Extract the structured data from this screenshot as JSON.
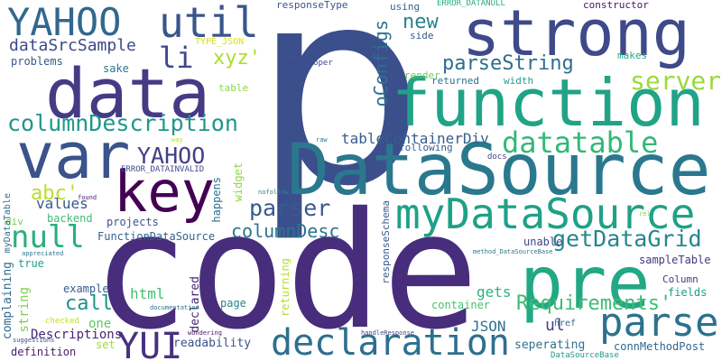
{
  "words": [
    {
      "text": "p",
      "color": "#3b4f8c"
    },
    {
      "text": "code",
      "color": "#472d7b"
    },
    {
      "text": "DataSource",
      "color": "#2a788e"
    },
    {
      "text": "strong",
      "color": "#3e4a89"
    },
    {
      "text": "function",
      "color": "#20a386"
    },
    {
      "text": "data",
      "color": "#443b84"
    },
    {
      "text": "pre",
      "color": "#22a884"
    },
    {
      "text": "var",
      "color": "#3a538b"
    },
    {
      "text": "key",
      "color": "#440154"
    },
    {
      "text": "declaration",
      "color": "#2e6f8e"
    },
    {
      "text": "YAHOO",
      "color": "#31688e"
    },
    {
      "text": "myDataSource",
      "color": "#1fa187"
    },
    {
      "text": "parse",
      "color": "#2c728e"
    },
    {
      "text": "util",
      "color": "#39558c"
    },
    {
      "text": "YUI",
      "color": "#46327e"
    },
    {
      "text": "datatable",
      "color": "#35b779"
    },
    {
      "text": "null",
      "color": "#29af7f"
    },
    {
      "text": "columnDescription",
      "color": "#1f988b"
    },
    {
      "text": "getDataGrid",
      "color": "#25858e"
    },
    {
      "text": "parser",
      "color": "#375a8c"
    },
    {
      "text": "Requirements'",
      "color": "#3dbc74"
    },
    {
      "text": "server",
      "color": "#9bd93c"
    },
    {
      "text": "YAHOO",
      "color": "#424086"
    },
    {
      "text": "parseString",
      "color": "#2e6e8e"
    },
    {
      "text": "li",
      "color": "#3f4889"
    },
    {
      "text": "columnDesc",
      "color": "#2b748e"
    },
    {
      "text": "dataSrcSample",
      "color": "#3e4989"
    },
    {
      "text": "xyz'",
      "color": "#addc30"
    },
    {
      "text": "new",
      "color": "#26828e"
    },
    {
      "text": "oConfigs",
      "color": "#2c718e"
    },
    {
      "text": "tableContainerDiv",
      "color": "#355e8d"
    },
    {
      "text": "abc'",
      "color": "#b8de29"
    },
    {
      "text": "call",
      "color": "#21918c"
    },
    {
      "text": "values",
      "color": "#38588c"
    },
    {
      "text": "FunctionDataSource",
      "color": "#33638d"
    },
    {
      "text": "html",
      "color": "#44bf70"
    },
    {
      "text": "JSON",
      "color": "#2d708e"
    },
    {
      "text": "gets",
      "color": "#2db27d"
    },
    {
      "text": "ul",
      "color": "#404688"
    },
    {
      "text": "one",
      "color": "#5ec962"
    },
    {
      "text": "readability",
      "color": "#3b528b"
    },
    {
      "text": "seperating",
      "color": "#2c738e"
    },
    {
      "text": "connMethodPost",
      "color": "#31678e"
    },
    {
      "text": "Descriptions",
      "color": "#482677"
    },
    {
      "text": "example",
      "color": "#355f8d"
    },
    {
      "text": "complaining",
      "color": "#31688e"
    },
    {
      "text": "string",
      "color": "#7ad151"
    },
    {
      "text": "true",
      "color": "#1fa088"
    },
    {
      "text": "div",
      "color": "#6ccd5a"
    },
    {
      "text": "backend",
      "color": "#3fbc73"
    },
    {
      "text": "projects",
      "color": "#3a548c"
    },
    {
      "text": "happens",
      "color": "#2c728e"
    },
    {
      "text": "widget",
      "color": "#8fd744"
    },
    {
      "text": "declared",
      "color": "#482475"
    },
    {
      "text": "page",
      "color": "#26828e"
    },
    {
      "text": "returning",
      "color": "#b5de2b"
    },
    {
      "text": "responseSchema",
      "color": "#375b8d"
    },
    {
      "text": "container",
      "color": "#48c16e"
    },
    {
      "text": "unable",
      "color": "#404588"
    },
    {
      "text": "sampleTable",
      "color": "#453781"
    },
    {
      "text": "Column",
      "color": "#433d84"
    },
    {
      "text": "fields",
      "color": "#1fa187"
    },
    {
      "text": "set",
      "color": "#a0da39"
    },
    {
      "text": "definition",
      "color": "#481b6d"
    },
    {
      "text": "myDataTable",
      "color": "#2d708e"
    },
    {
      "text": "problems",
      "color": "#39568c"
    },
    {
      "text": "sake",
      "color": "#29798e"
    },
    {
      "text": "table",
      "color": "#8bd646"
    },
    {
      "text": "TYPE_JSON",
      "color": "#d8e219"
    },
    {
      "text": "responseType",
      "color": "#3a548c"
    },
    {
      "text": "using",
      "color": "#32658e"
    },
    {
      "text": "side",
      "color": "#37598c"
    },
    {
      "text": "render",
      "color": "#69cd5b"
    },
    {
      "text": "returned",
      "color": "#2d708e"
    },
    {
      "text": "width",
      "color": "#1f9e89"
    },
    {
      "text": "makes",
      "color": "#22a785"
    },
    {
      "text": "constructor",
      "color": "#471063"
    },
    {
      "text": "ERROR_DATANULL",
      "color": "#27ad81"
    },
    {
      "text": "developer",
      "color": "#3e4989"
    },
    {
      "text": "following",
      "color": "#365c8d"
    },
    {
      "text": "docs",
      "color": "#404588"
    },
    {
      "text": "ERROR_DATAINVALID",
      "color": "#3e4c8a"
    },
    {
      "text": "way",
      "color": "#b5de2b"
    },
    {
      "text": "raw",
      "color": "#287c8e"
    },
    {
      "text": "nofollow",
      "color": "#26828e"
    },
    {
      "text": "found",
      "color": "#481769"
    },
    {
      "text": "rel",
      "color": "#7fd34e"
    },
    {
      "text": "appreciated",
      "color": "#2a768e"
    },
    {
      "text": "method_DataSourceBase",
      "color": "#2a788e"
    },
    {
      "text": "checked",
      "color": "#c2df23"
    },
    {
      "text": "documentation",
      "color": "#2c718e"
    },
    {
      "text": "wondering",
      "color": "#471365"
    },
    {
      "text": "href",
      "color": "#2f6c8e"
    },
    {
      "text": "suggestions",
      "color": "#3b528b"
    },
    {
      "text": "handleResponse",
      "color": "#3e4a89"
    },
    {
      "text": "DataSourceBase",
      "color": "#1f9a8a"
    }
  ]
}
